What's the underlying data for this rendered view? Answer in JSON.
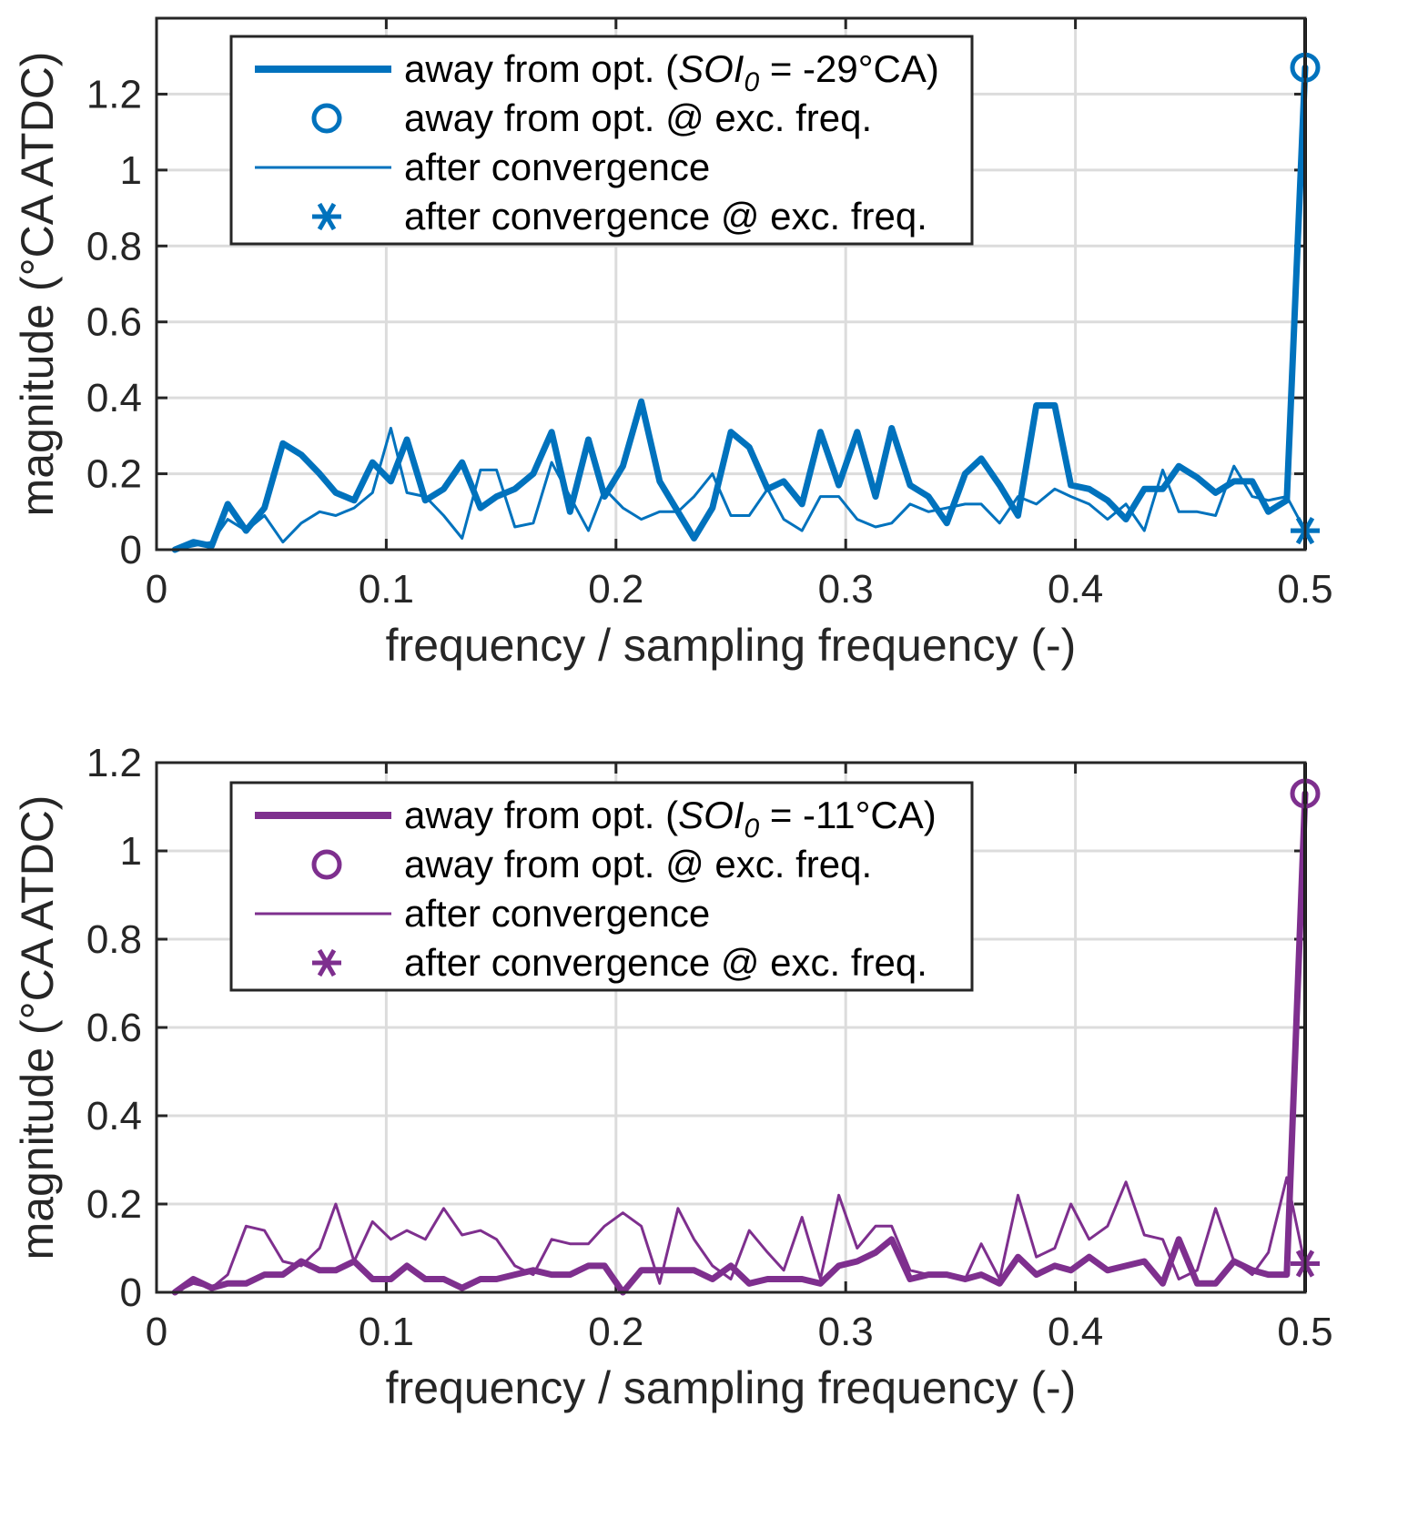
{
  "chart_data": [
    {
      "type": "line",
      "xlabel": "frequency / sampling frequency (-)",
      "ylabel": "magnitude (°CA ATDC)",
      "xlim": [
        0,
        0.5
      ],
      "ylim": [
        0,
        1.4
      ],
      "xticks": [
        0,
        0.1,
        0.2,
        0.3,
        0.4,
        0.5
      ],
      "xtick_labels": [
        "0",
        "0.1",
        "0.2",
        "0.3",
        "0.4",
        "0.5"
      ],
      "yticks": [
        0,
        0.2,
        0.4,
        0.6,
        0.8,
        1.0,
        1.2
      ],
      "ytick_labels": [
        "0",
        "0.2",
        "0.4",
        "0.6",
        "0.8",
        "1",
        "1.2"
      ],
      "grid": true,
      "color": "#0072BD",
      "excitation_frequency": 0.5,
      "legend": {
        "position": "top",
        "entries": [
          {
            "text_before": "away from opt. (",
            "italic": "SOI",
            "subscript": "0",
            "text_after": " = -29°CA)"
          },
          {
            "text": "away from opt. @ exc. freq."
          },
          {
            "text": "after convergence"
          },
          {
            "text": "after convergence @ exc. freq."
          }
        ]
      },
      "series": [
        {
          "name": "away from opt.",
          "style": "thick",
          "x": [
            0.008,
            0.016,
            0.024,
            0.031,
            0.039,
            0.047,
            0.055,
            0.063,
            0.071,
            0.078,
            0.086,
            0.094,
            0.102,
            0.109,
            0.117,
            0.125,
            0.133,
            0.141,
            0.148,
            0.156,
            0.164,
            0.172,
            0.18,
            0.188,
            0.195,
            0.203,
            0.211,
            0.219,
            0.227,
            0.234,
            0.242,
            0.25,
            0.258,
            0.266,
            0.273,
            0.281,
            0.289,
            0.297,
            0.305,
            0.313,
            0.32,
            0.328,
            0.336,
            0.344,
            0.352,
            0.359,
            0.367,
            0.375,
            0.383,
            0.391,
            0.398,
            0.406,
            0.414,
            0.422,
            0.43,
            0.438,
            0.445,
            0.453,
            0.461,
            0.469,
            0.477,
            0.484,
            0.492,
            0.5
          ],
          "y": [
            0.0,
            0.02,
            0.01,
            0.12,
            0.05,
            0.11,
            0.28,
            0.25,
            0.2,
            0.15,
            0.13,
            0.23,
            0.18,
            0.29,
            0.13,
            0.16,
            0.23,
            0.11,
            0.14,
            0.16,
            0.2,
            0.31,
            0.1,
            0.29,
            0.14,
            0.22,
            0.39,
            0.18,
            0.1,
            0.03,
            0.11,
            0.31,
            0.27,
            0.16,
            0.18,
            0.12,
            0.31,
            0.17,
            0.31,
            0.14,
            0.32,
            0.17,
            0.14,
            0.07,
            0.2,
            0.24,
            0.17,
            0.09,
            0.38,
            0.38,
            0.17,
            0.16,
            0.13,
            0.08,
            0.16,
            0.16,
            0.22,
            0.19,
            0.15,
            0.18,
            0.18,
            0.1,
            0.13,
            1.27
          ]
        },
        {
          "name": "after convergence",
          "style": "thin",
          "x": [
            0.008,
            0.016,
            0.024,
            0.031,
            0.039,
            0.047,
            0.055,
            0.063,
            0.071,
            0.078,
            0.086,
            0.094,
            0.102,
            0.109,
            0.117,
            0.125,
            0.133,
            0.141,
            0.148,
            0.156,
            0.164,
            0.172,
            0.18,
            0.188,
            0.195,
            0.203,
            0.211,
            0.219,
            0.227,
            0.234,
            0.242,
            0.25,
            0.258,
            0.266,
            0.273,
            0.281,
            0.289,
            0.297,
            0.305,
            0.313,
            0.32,
            0.328,
            0.336,
            0.344,
            0.352,
            0.359,
            0.367,
            0.375,
            0.383,
            0.391,
            0.398,
            0.406,
            0.414,
            0.422,
            0.43,
            0.438,
            0.445,
            0.453,
            0.461,
            0.469,
            0.477,
            0.484,
            0.492,
            0.5
          ],
          "y": [
            0.0,
            0.01,
            0.02,
            0.08,
            0.05,
            0.09,
            0.02,
            0.07,
            0.1,
            0.09,
            0.11,
            0.15,
            0.32,
            0.15,
            0.14,
            0.09,
            0.03,
            0.21,
            0.21,
            0.06,
            0.07,
            0.23,
            0.14,
            0.05,
            0.16,
            0.11,
            0.08,
            0.1,
            0.1,
            0.14,
            0.2,
            0.09,
            0.09,
            0.16,
            0.08,
            0.05,
            0.14,
            0.14,
            0.08,
            0.06,
            0.07,
            0.12,
            0.1,
            0.11,
            0.12,
            0.12,
            0.07,
            0.14,
            0.12,
            0.16,
            0.14,
            0.12,
            0.08,
            0.12,
            0.05,
            0.21,
            0.1,
            0.1,
            0.09,
            0.22,
            0.14,
            0.13,
            0.14,
            0.05
          ]
        }
      ],
      "markers": [
        {
          "name": "away from opt. @ exc. freq.",
          "shape": "circle",
          "x": 0.5,
          "y": 1.27
        },
        {
          "name": "after convergence @ exc. freq.",
          "shape": "asterisk",
          "x": 0.5,
          "y": 0.05
        }
      ]
    },
    {
      "type": "line",
      "xlabel": "frequency / sampling frequency (-)",
      "ylabel": "magnitude (°CA ATDC)",
      "xlim": [
        0,
        0.5
      ],
      "ylim": [
        0,
        1.2
      ],
      "xticks": [
        0,
        0.1,
        0.2,
        0.3,
        0.4,
        0.5
      ],
      "xtick_labels": [
        "0",
        "0.1",
        "0.2",
        "0.3",
        "0.4",
        "0.5"
      ],
      "yticks": [
        0,
        0.2,
        0.4,
        0.6,
        0.8,
        1.0,
        1.2
      ],
      "ytick_labels": [
        "0",
        "0.2",
        "0.4",
        "0.6",
        "0.8",
        "1",
        "1.2"
      ],
      "grid": true,
      "color": "#7E2F8E",
      "excitation_frequency": 0.5,
      "legend": {
        "position": "top",
        "entries": [
          {
            "text_before": "away from opt. (",
            "italic": "SOI",
            "subscript": "0",
            "text_after": " = -11°CA)"
          },
          {
            "text": "away from opt. @ exc. freq."
          },
          {
            "text": "after convergence"
          },
          {
            "text": "after convergence @ exc. freq."
          }
        ]
      },
      "series": [
        {
          "name": "away from opt.",
          "style": "thick",
          "x": [
            0.008,
            0.016,
            0.024,
            0.031,
            0.039,
            0.047,
            0.055,
            0.063,
            0.071,
            0.078,
            0.086,
            0.094,
            0.102,
            0.109,
            0.117,
            0.125,
            0.133,
            0.141,
            0.148,
            0.156,
            0.164,
            0.172,
            0.18,
            0.188,
            0.195,
            0.203,
            0.211,
            0.219,
            0.227,
            0.234,
            0.242,
            0.25,
            0.258,
            0.266,
            0.273,
            0.281,
            0.289,
            0.297,
            0.305,
            0.313,
            0.32,
            0.328,
            0.336,
            0.344,
            0.352,
            0.359,
            0.367,
            0.375,
            0.383,
            0.391,
            0.398,
            0.406,
            0.414,
            0.422,
            0.43,
            0.438,
            0.445,
            0.453,
            0.461,
            0.469,
            0.477,
            0.484,
            0.492,
            0.5
          ],
          "y": [
            0.0,
            0.03,
            0.01,
            0.02,
            0.02,
            0.04,
            0.04,
            0.07,
            0.05,
            0.05,
            0.07,
            0.03,
            0.03,
            0.06,
            0.03,
            0.03,
            0.01,
            0.03,
            0.03,
            0.04,
            0.05,
            0.04,
            0.04,
            0.06,
            0.06,
            0.0,
            0.05,
            0.05,
            0.05,
            0.05,
            0.03,
            0.06,
            0.02,
            0.03,
            0.03,
            0.03,
            0.02,
            0.06,
            0.07,
            0.09,
            0.12,
            0.03,
            0.04,
            0.04,
            0.03,
            0.04,
            0.02,
            0.08,
            0.04,
            0.06,
            0.05,
            0.08,
            0.05,
            0.06,
            0.07,
            0.02,
            0.12,
            0.02,
            0.02,
            0.07,
            0.05,
            0.04,
            0.04,
            1.13
          ]
        },
        {
          "name": "after convergence",
          "style": "thin",
          "x": [
            0.008,
            0.016,
            0.024,
            0.031,
            0.039,
            0.047,
            0.055,
            0.063,
            0.071,
            0.078,
            0.086,
            0.094,
            0.102,
            0.109,
            0.117,
            0.125,
            0.133,
            0.141,
            0.148,
            0.156,
            0.164,
            0.172,
            0.18,
            0.188,
            0.195,
            0.203,
            0.211,
            0.219,
            0.227,
            0.234,
            0.242,
            0.25,
            0.258,
            0.266,
            0.273,
            0.281,
            0.289,
            0.297,
            0.305,
            0.313,
            0.32,
            0.328,
            0.336,
            0.344,
            0.352,
            0.359,
            0.367,
            0.375,
            0.383,
            0.391,
            0.398,
            0.406,
            0.414,
            0.422,
            0.43,
            0.438,
            0.445,
            0.453,
            0.461,
            0.469,
            0.477,
            0.484,
            0.492,
            0.5
          ],
          "y": [
            0.0,
            0.02,
            0.01,
            0.04,
            0.15,
            0.14,
            0.07,
            0.06,
            0.1,
            0.2,
            0.07,
            0.16,
            0.12,
            0.14,
            0.12,
            0.19,
            0.13,
            0.14,
            0.12,
            0.06,
            0.04,
            0.12,
            0.11,
            0.11,
            0.15,
            0.18,
            0.15,
            0.02,
            0.19,
            0.12,
            0.06,
            0.03,
            0.14,
            0.09,
            0.05,
            0.17,
            0.03,
            0.22,
            0.1,
            0.15,
            0.15,
            0.05,
            0.04,
            0.04,
            0.03,
            0.11,
            0.03,
            0.22,
            0.08,
            0.1,
            0.2,
            0.12,
            0.15,
            0.25,
            0.13,
            0.12,
            0.03,
            0.05,
            0.19,
            0.07,
            0.04,
            0.09,
            0.26,
            0.06
          ]
        }
      ],
      "markers": [
        {
          "name": "away from opt. @ exc. freq.",
          "shape": "circle",
          "x": 0.5,
          "y": 1.13
        },
        {
          "name": "after convergence @ exc. freq.",
          "shape": "asterisk",
          "x": 0.5,
          "y": 0.065
        }
      ]
    }
  ]
}
